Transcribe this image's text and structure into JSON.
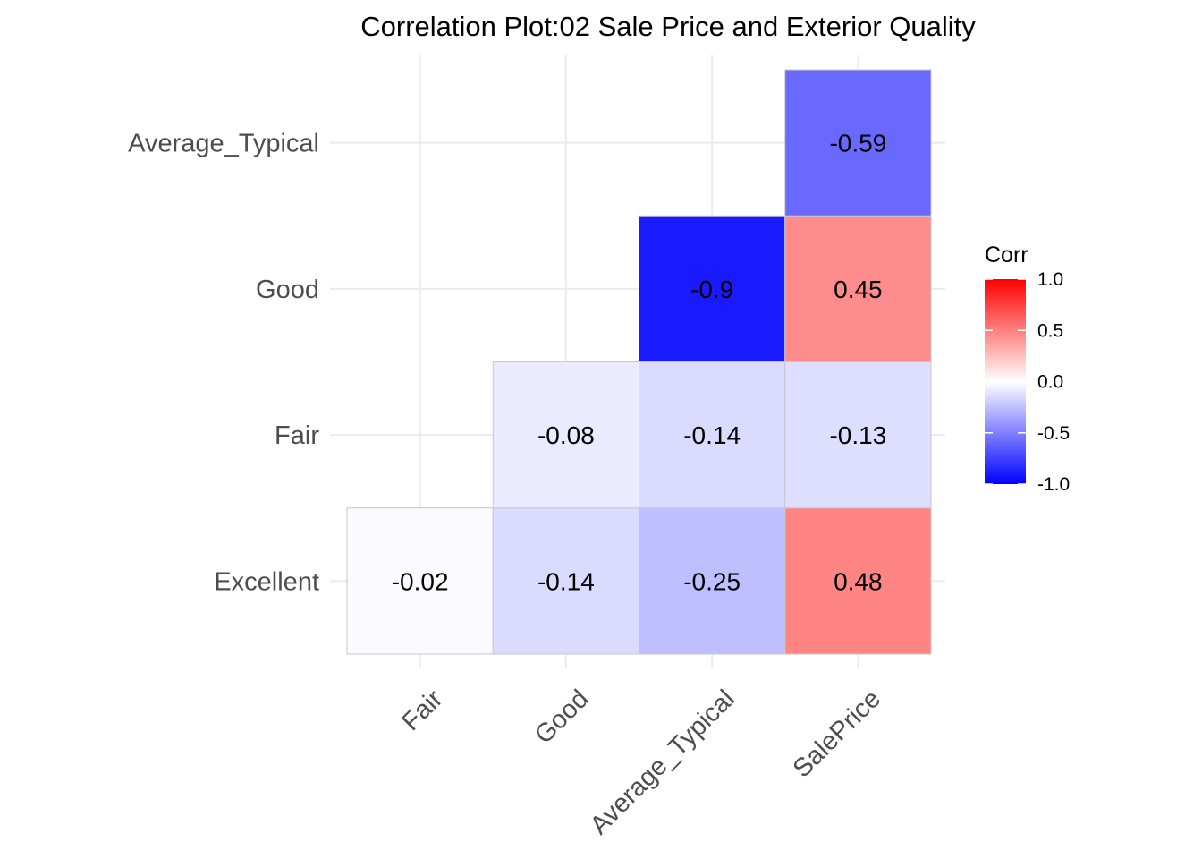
{
  "chart_data": {
    "type": "heatmap",
    "title": "Correlation Plot:02 Sale Price and Exterior Quality",
    "x_categories": [
      "Fair",
      "Good",
      "Average_Typical",
      "SalePrice"
    ],
    "y_categories": [
      "Excellent",
      "Fair",
      "Good",
      "Average_Typical"
    ],
    "cells": [
      {
        "x": "Fair",
        "y": "Excellent",
        "value": -0.02,
        "label": "-0.02"
      },
      {
        "x": "Good",
        "y": "Excellent",
        "value": -0.14,
        "label": "-0.14"
      },
      {
        "x": "Average_Typical",
        "y": "Excellent",
        "value": -0.25,
        "label": "-0.25"
      },
      {
        "x": "SalePrice",
        "y": "Excellent",
        "value": 0.48,
        "label": "0.48"
      },
      {
        "x": "Good",
        "y": "Fair",
        "value": -0.08,
        "label": "-0.08"
      },
      {
        "x": "Average_Typical",
        "y": "Fair",
        "value": -0.14,
        "label": "-0.14"
      },
      {
        "x": "SalePrice",
        "y": "Fair",
        "value": -0.13,
        "label": "-0.13"
      },
      {
        "x": "Average_Typical",
        "y": "Good",
        "value": -0.9,
        "label": "-0.9"
      },
      {
        "x": "SalePrice",
        "y": "Good",
        "value": 0.45,
        "label": "0.45"
      },
      {
        "x": "SalePrice",
        "y": "Average_Typical",
        "value": -0.59,
        "label": "-0.59"
      }
    ],
    "legend": {
      "title": "Corr",
      "placement": "right",
      "ticks": [
        "1.0",
        "0.5",
        "0.0",
        "-0.5",
        "-1.0"
      ],
      "tick_values": [
        1.0,
        0.5,
        0.0,
        -0.5,
        -1.0
      ],
      "range": [
        -1.0,
        1.0
      ]
    },
    "colors": {
      "low": "#0000ff",
      "mid": "#ffffff",
      "high": "#ff0000",
      "grid": "#ebebeb",
      "cell_border": "#c8c8c8"
    },
    "grid": true
  }
}
